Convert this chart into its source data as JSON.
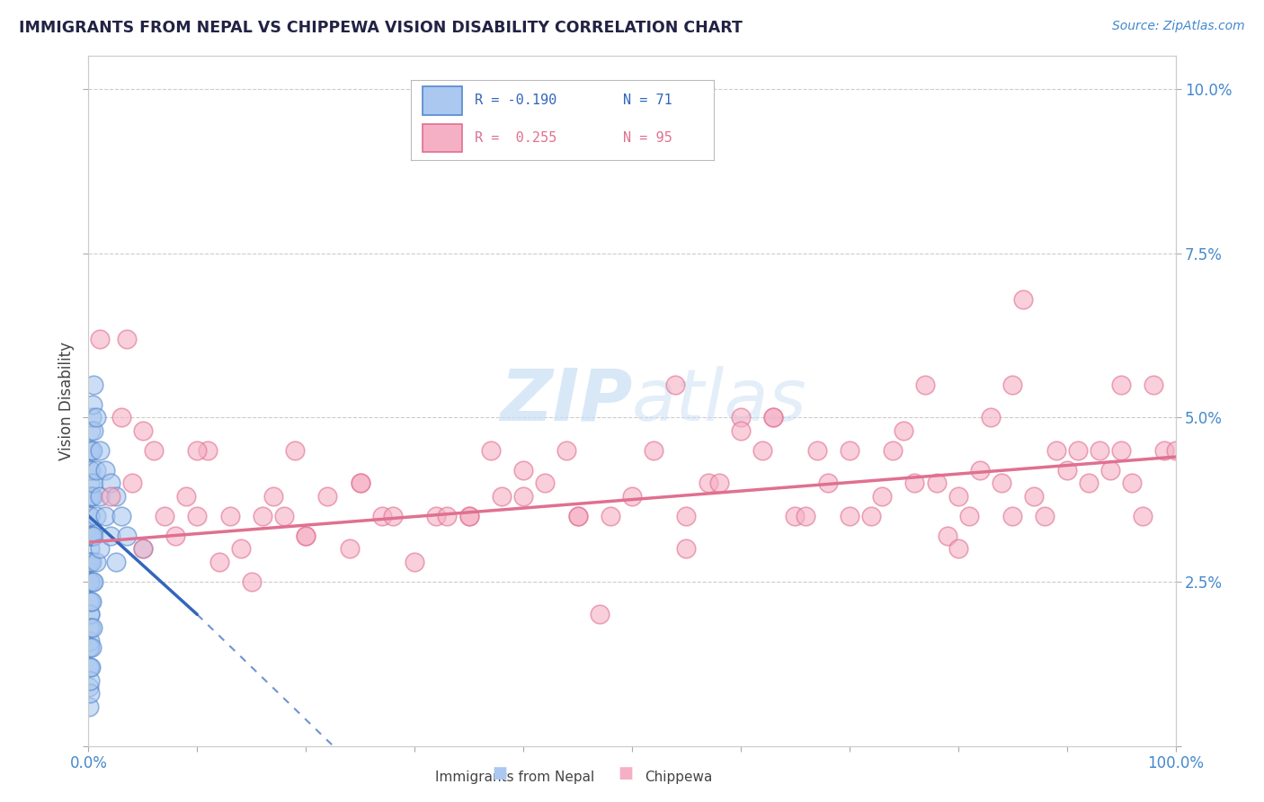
{
  "title": "IMMIGRANTS FROM NEPAL VS CHIPPEWA VISION DISABILITY CORRELATION CHART",
  "source_text": "Source: ZipAtlas.com",
  "ylabel": "Vision Disability",
  "xlim": [
    0.0,
    100.0
  ],
  "ylim": [
    0.0,
    10.5
  ],
  "nepal_color": "#aac8f0",
  "nepal_edge_color": "#5588cc",
  "chippewa_color": "#f5b0c5",
  "chippewa_edge_color": "#e07090",
  "nepal_line_color": "#3366bb",
  "chippewa_line_color": "#e07090",
  "watermark_color": "#c8dff5",
  "background_color": "#ffffff",
  "grid_color": "#cccccc",
  "nepal_scatter": {
    "x": [
      0.05,
      0.05,
      0.05,
      0.05,
      0.05,
      0.05,
      0.05,
      0.05,
      0.05,
      0.05,
      0.1,
      0.1,
      0.1,
      0.1,
      0.1,
      0.1,
      0.1,
      0.1,
      0.1,
      0.1,
      0.15,
      0.15,
      0.15,
      0.15,
      0.15,
      0.15,
      0.15,
      0.15,
      0.2,
      0.2,
      0.2,
      0.2,
      0.2,
      0.2,
      0.2,
      0.2,
      0.3,
      0.3,
      0.3,
      0.3,
      0.3,
      0.3,
      0.3,
      0.4,
      0.4,
      0.4,
      0.4,
      0.4,
      0.4,
      0.5,
      0.5,
      0.5,
      0.5,
      0.5,
      0.7,
      0.7,
      0.7,
      0.7,
      1.0,
      1.0,
      1.0,
      1.5,
      1.5,
      2.0,
      2.0,
      2.5,
      2.5,
      3.0,
      3.5,
      5.0
    ],
    "y": [
      3.8,
      3.2,
      2.8,
      2.5,
      2.2,
      1.8,
      1.5,
      1.2,
      0.9,
      0.6,
      4.2,
      3.8,
      3.5,
      3.2,
      2.8,
      2.5,
      2.0,
      1.6,
      1.2,
      0.8,
      4.5,
      4.0,
      3.5,
      3.0,
      2.5,
      2.0,
      1.5,
      1.0,
      4.8,
      4.2,
      3.8,
      3.2,
      2.8,
      2.2,
      1.8,
      1.2,
      5.0,
      4.5,
      3.8,
      3.2,
      2.8,
      2.2,
      1.5,
      5.2,
      4.5,
      3.8,
      3.2,
      2.5,
      1.8,
      5.5,
      4.8,
      4.0,
      3.2,
      2.5,
      5.0,
      4.2,
      3.5,
      2.8,
      4.5,
      3.8,
      3.0,
      4.2,
      3.5,
      4.0,
      3.2,
      3.8,
      2.8,
      3.5,
      3.2,
      3.0
    ]
  },
  "chippewa_scatter": {
    "x": [
      1.0,
      2.0,
      3.0,
      4.0,
      5.0,
      6.0,
      7.0,
      8.0,
      9.0,
      10.0,
      11.0,
      12.0,
      13.0,
      14.0,
      15.0,
      16.0,
      17.0,
      18.0,
      19.0,
      20.0,
      22.0,
      24.0,
      25.0,
      27.0,
      28.0,
      30.0,
      32.0,
      33.0,
      35.0,
      37.0,
      38.0,
      40.0,
      42.0,
      44.0,
      45.0,
      47.0,
      48.0,
      50.0,
      52.0,
      54.0,
      55.0,
      57.0,
      58.0,
      60.0,
      62.0,
      63.0,
      65.0,
      66.0,
      67.0,
      68.0,
      70.0,
      72.0,
      73.0,
      74.0,
      75.0,
      76.0,
      77.0,
      78.0,
      79.0,
      80.0,
      81.0,
      82.0,
      83.0,
      84.0,
      85.0,
      86.0,
      87.0,
      88.0,
      89.0,
      90.0,
      91.0,
      92.0,
      93.0,
      94.0,
      95.0,
      96.0,
      97.0,
      98.0,
      99.0,
      100.0,
      3.5,
      20.0,
      40.0,
      55.0,
      70.0,
      85.0,
      10.0,
      25.0,
      45.0,
      63.0,
      80.0,
      95.0,
      5.0,
      35.0,
      60.0
    ],
    "y": [
      6.2,
      3.8,
      5.0,
      4.0,
      3.0,
      4.5,
      3.5,
      3.2,
      3.8,
      3.5,
      4.5,
      2.8,
      3.5,
      3.0,
      2.5,
      3.5,
      3.8,
      3.5,
      4.5,
      3.2,
      3.8,
      3.0,
      4.0,
      3.5,
      3.5,
      2.8,
      3.5,
      3.5,
      3.5,
      4.5,
      3.8,
      4.2,
      4.0,
      4.5,
      3.5,
      2.0,
      3.5,
      3.8,
      4.5,
      5.5,
      3.0,
      4.0,
      4.0,
      5.0,
      4.5,
      5.0,
      3.5,
      3.5,
      4.5,
      4.0,
      4.5,
      3.5,
      3.8,
      4.5,
      4.8,
      4.0,
      5.5,
      4.0,
      3.2,
      3.0,
      3.5,
      4.2,
      5.0,
      4.0,
      5.5,
      6.8,
      3.8,
      3.5,
      4.5,
      4.2,
      4.5,
      4.0,
      4.5,
      4.2,
      4.5,
      4.0,
      3.5,
      5.5,
      4.5,
      4.5,
      6.2,
      3.2,
      3.8,
      3.5,
      3.5,
      3.5,
      4.5,
      4.0,
      3.5,
      5.0,
      3.8,
      5.5,
      4.8,
      3.5,
      4.8
    ]
  },
  "nepal_line": {
    "x_start": 0.0,
    "y_start": 3.5,
    "x_solid_end": 10.0,
    "y_solid_end": 2.0,
    "x_dash_end": 35.0,
    "y_dash_end": -2.0
  },
  "chippewa_line": {
    "x_start": 0.0,
    "y_start": 3.1,
    "x_end": 100.0,
    "y_end": 4.4
  }
}
